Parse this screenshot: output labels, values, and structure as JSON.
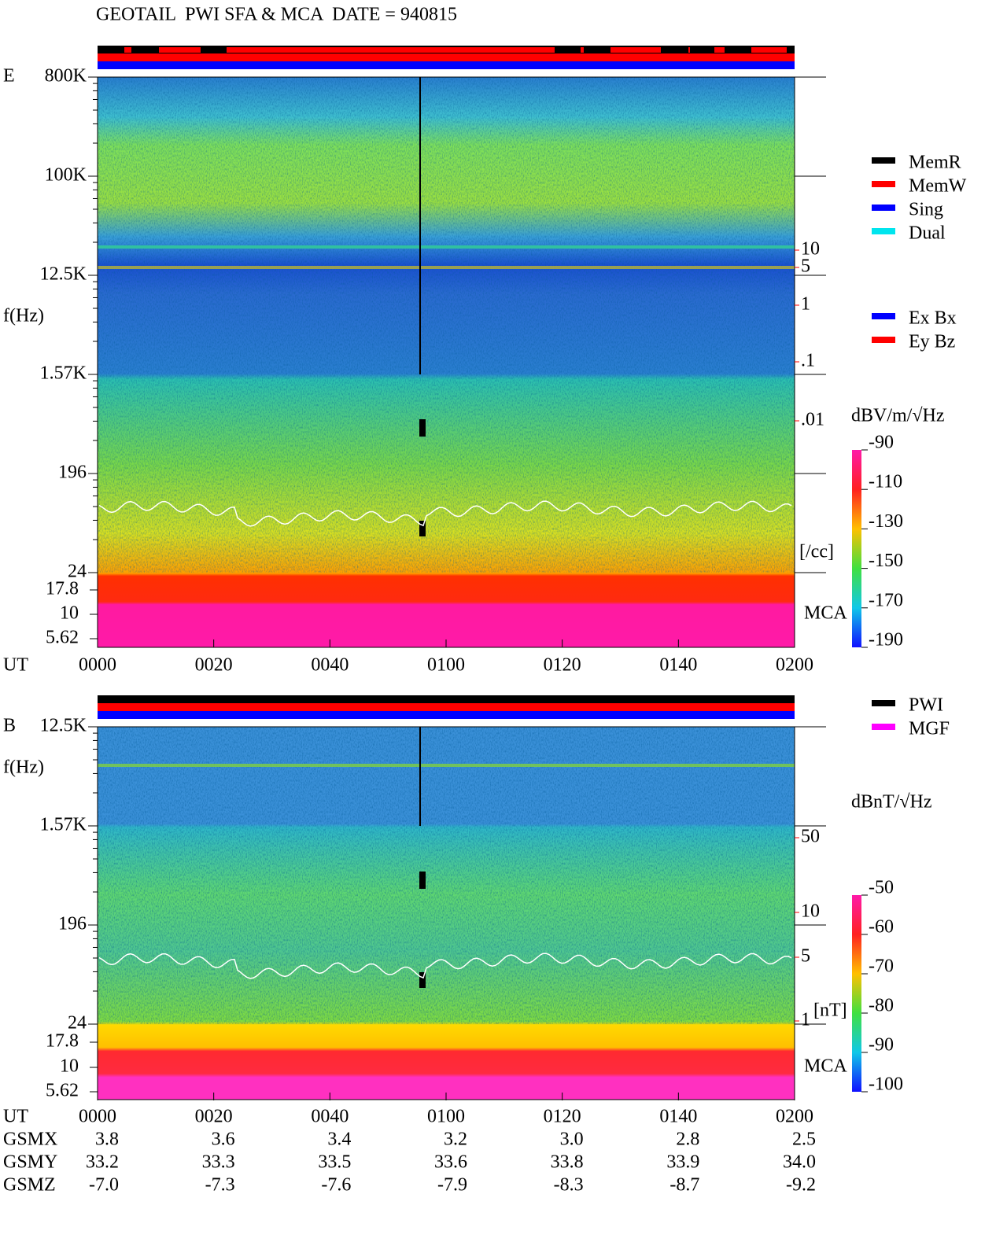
{
  "header": {
    "title": "GEOTAIL  PWI SFA & MCA  DATE = 940815"
  },
  "panel_e": {
    "label": "E",
    "axis_label": "f(Hz)",
    "freq_ticks": [
      "800K",
      "100K",
      "12.5K",
      "1.57K",
      "196",
      "24"
    ],
    "mca_ticks": [
      "17.8",
      "10",
      "5.62"
    ],
    "mca_label": "MCA",
    "density_ticks": [
      "10",
      "5",
      "1",
      ".1",
      ".01"
    ],
    "density_unit": "[/cc]",
    "time_label": "UT",
    "time_ticks": [
      "0000",
      "0020",
      "0040",
      "0100",
      "0120",
      "0140",
      "0200"
    ],
    "legend_mode": [
      {
        "name": "MemR",
        "color": "#000000"
      },
      {
        "name": "MemW",
        "color": "#ff0000"
      },
      {
        "name": "Sing",
        "color": "#0000ff"
      },
      {
        "name": "Dual",
        "color": "#00e5ee"
      }
    ],
    "legend_comp": [
      {
        "name": "Ex Bx",
        "color": "#0000ff"
      },
      {
        "name": "Ey Bz",
        "color": "#ff0000"
      }
    ],
    "colorbar": {
      "unit": "dBV/m/√Hz",
      "ticks": [
        "-90",
        "-110",
        "-130",
        "-150",
        "-170",
        "-190"
      ]
    }
  },
  "panel_b": {
    "label": "B",
    "axis_label": "f(Hz)",
    "freq_ticks": [
      "12.5K",
      "1.57K",
      "196",
      "24"
    ],
    "mca_ticks": [
      "17.8",
      "10",
      "5.62"
    ],
    "mca_label": "MCA",
    "field_ticks": [
      "50",
      "10",
      "5",
      "1"
    ],
    "field_unit": "[nT]",
    "time_label": "UT",
    "time_ticks": [
      "0000",
      "0020",
      "0040",
      "0100",
      "0120",
      "0140",
      "0200"
    ],
    "legend": [
      {
        "name": "PWI",
        "color": "#000000"
      },
      {
        "name": "MGF",
        "color": "#ff00ff"
      }
    ],
    "colorbar": {
      "unit": "dBnT/√Hz",
      "ticks": [
        "-50",
        "-60",
        "-70",
        "-80",
        "-90",
        "-100"
      ]
    }
  },
  "orbit": {
    "rows": [
      {
        "label": "GSMX",
        "values": [
          "3.8",
          "3.6",
          "3.4",
          "3.2",
          "3.0",
          "2.8",
          "2.5"
        ]
      },
      {
        "label": "GSMY",
        "values": [
          "33.2",
          "33.3",
          "33.5",
          "33.6",
          "33.8",
          "33.9",
          "34.0"
        ]
      },
      {
        "label": "GSMZ",
        "values": [
          "-7.0",
          "-7.3",
          "-7.6",
          "-7.9",
          "-8.3",
          "-8.7",
          "-9.2"
        ]
      }
    ]
  }
}
